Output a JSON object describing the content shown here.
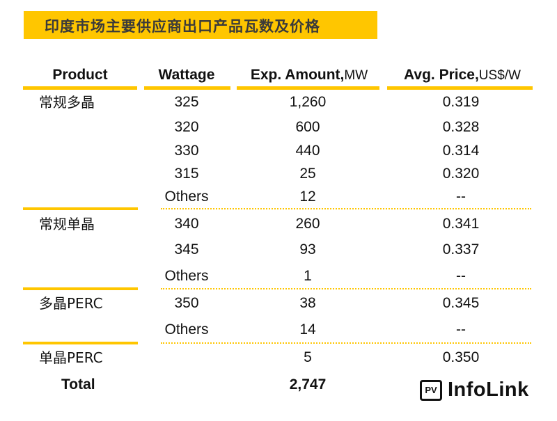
{
  "chart_data": {
    "type": "table",
    "title": "印度市场主要供应商出口产品瓦数及价格",
    "columns": [
      {
        "label": "Product",
        "unit": ""
      },
      {
        "label": "Wattage",
        "unit": ""
      },
      {
        "label": "Exp. Amount,",
        "unit": "MW"
      },
      {
        "label": "Avg. Price,",
        "unit": "US$/W"
      }
    ],
    "groups": [
      {
        "product": "常规多晶",
        "rows": [
          {
            "wattage": "325",
            "amount": "1,260",
            "price": "0.319"
          },
          {
            "wattage": "320",
            "amount": "600",
            "price": "0.328"
          },
          {
            "wattage": "330",
            "amount": "440",
            "price": "0.314"
          },
          {
            "wattage": "315",
            "amount": "25",
            "price": "0.320"
          },
          {
            "wattage": "Others",
            "amount": "12",
            "price": "--"
          }
        ]
      },
      {
        "product": "常规单晶",
        "rows": [
          {
            "wattage": "340",
            "amount": "260",
            "price": "0.341"
          },
          {
            "wattage": "345",
            "amount": "93",
            "price": "0.337"
          },
          {
            "wattage": "Others",
            "amount": "1",
            "price": "--"
          }
        ]
      },
      {
        "product": "多晶PERC",
        "rows": [
          {
            "wattage": "350",
            "amount": "38",
            "price": "0.345"
          },
          {
            "wattage": "Others",
            "amount": "14",
            "price": "--"
          }
        ]
      },
      {
        "product": "单晶PERC",
        "rows": [
          {
            "wattage": "",
            "amount": "5",
            "price": "0.350"
          }
        ]
      }
    ],
    "total": {
      "label": "Total",
      "amount": "2,747"
    }
  },
  "logo": {
    "box": "PV",
    "text": "InfoLink"
  },
  "colors": {
    "accent": "#ffc600",
    "text": "#111111",
    "title_text": "#3a3a3a"
  }
}
